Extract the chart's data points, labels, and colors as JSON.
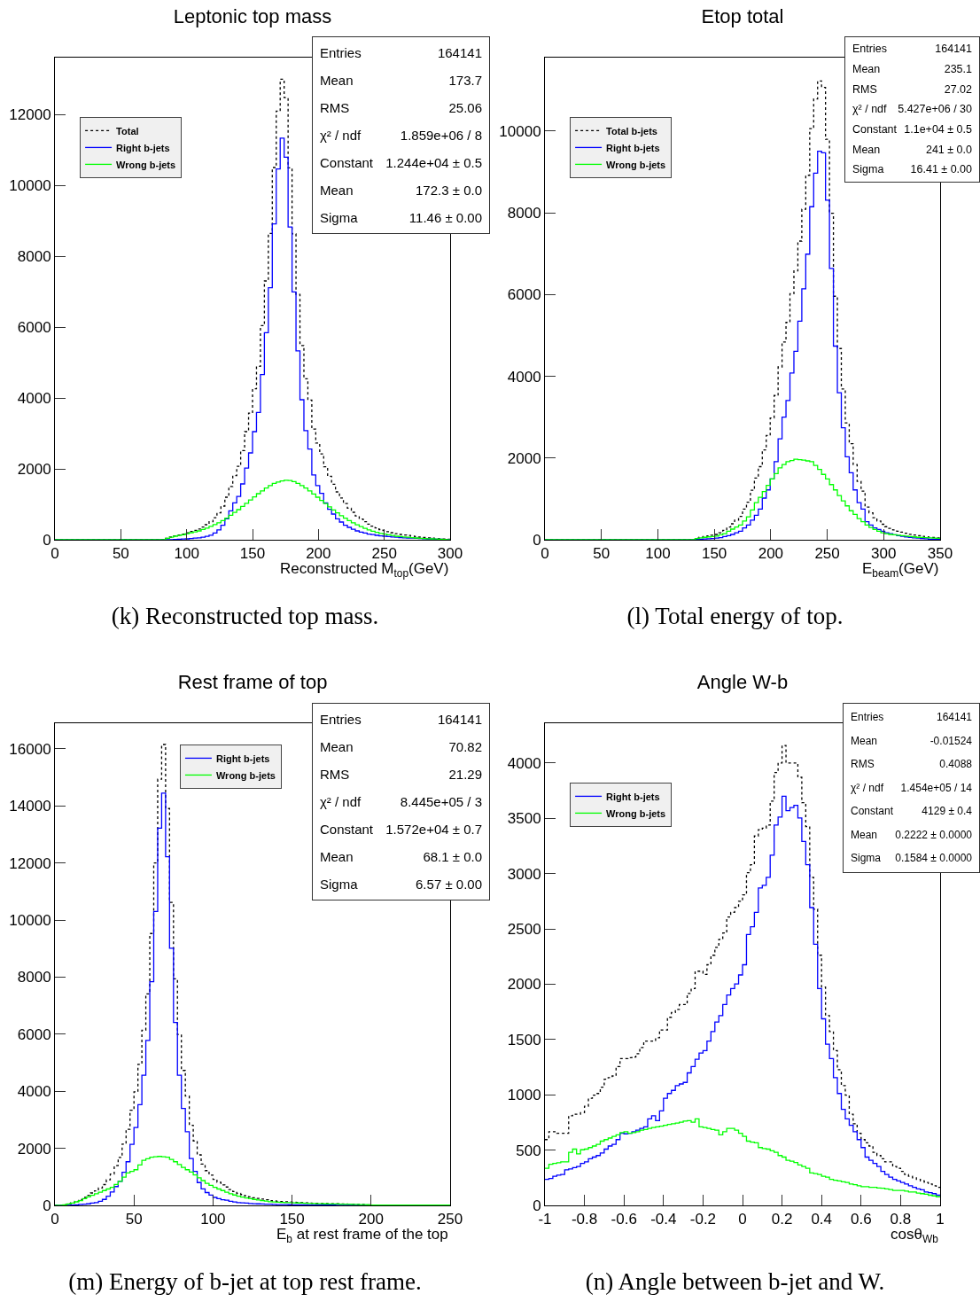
{
  "chart_data": [
    {
      "type": "histogram",
      "title": "Leptonic top mass",
      "xlabel": "Reconstructed M$_{top}$(GeV)",
      "legend": "top left",
      "xlim": [
        0,
        300
      ],
      "xticks": [
        0,
        50,
        100,
        150,
        200,
        250,
        300
      ],
      "ylim": [
        0,
        13600
      ],
      "yticks": [
        0,
        2000,
        4000,
        6000,
        8000,
        10000,
        12000
      ],
      "bins": [
        0,
        84,
        87,
        90,
        93,
        96,
        99,
        102,
        105,
        108,
        111,
        114,
        117,
        120,
        123,
        126,
        129,
        132,
        135,
        138,
        141,
        144,
        147,
        150,
        153,
        156,
        159,
        162,
        165,
        168,
        171,
        174,
        177,
        180,
        183,
        186,
        189,
        192,
        195,
        198,
        201,
        204,
        207,
        210,
        213,
        216,
        219,
        222,
        225,
        228,
        231,
        234,
        237,
        240,
        243,
        246,
        249,
        252,
        255,
        258,
        261,
        264,
        267,
        270,
        273,
        276,
        279,
        282,
        285,
        288,
        291,
        294,
        297,
        300
      ],
      "series": [
        {
          "name": "Total",
          "color": "#000000",
          "line_style": "dotted",
          "values": [
            0,
            40,
            75,
            110,
            135,
            160,
            195,
            235,
            265,
            305,
            360,
            425,
            510,
            620,
            760,
            950,
            1200,
            1505,
            1810,
            2070,
            2515,
            3050,
            3570,
            4260,
            4890,
            6040,
            7300,
            8640,
            10500,
            12090,
            12990,
            12470,
            10490,
            8630,
            6920,
            5480,
            4540,
            3940,
            3120,
            2730,
            2420,
            2060,
            1790,
            1565,
            1350,
            1180,
            1020,
            890,
            775,
            670,
            585,
            510,
            440,
            385,
            335,
            287,
            260,
            230,
            200,
            170,
            150,
            135,
            120,
            105,
            90,
            75,
            65,
            55,
            45,
            35,
            27,
            20,
            13
          ]
        },
        {
          "name": "Right b-jets",
          "color": "#0000ff",
          "line_style": "solid",
          "values": [
            0,
            0,
            5,
            10,
            15,
            20,
            25,
            35,
            45,
            55,
            70,
            95,
            130,
            190,
            280,
            410,
            590,
            815,
            1040,
            1220,
            1575,
            2020,
            2450,
            3050,
            3590,
            4660,
            5840,
            7110,
            8910,
            10460,
            11330,
            10790,
            8820,
            6990,
            5330,
            3950,
            3080,
            2560,
            1830,
            1530,
            1310,
            1040,
            860,
            725,
            590,
            500,
            410,
            350,
            295,
            250,
            215,
            190,
            160,
            145,
            125,
            107,
            100,
            90,
            80,
            70,
            60,
            55,
            50,
            45,
            40,
            35,
            30,
            25,
            20,
            15,
            12,
            10,
            8
          ]
        },
        {
          "name": "Wrong b-jets",
          "color": "#00ff00",
          "line_style": "solid",
          "values": [
            0,
            40,
            70,
            100,
            120,
            140,
            170,
            200,
            220,
            250,
            290,
            330,
            380,
            430,
            480,
            540,
            610,
            690,
            770,
            850,
            940,
            1030,
            1120,
            1210,
            1300,
            1380,
            1460,
            1530,
            1590,
            1630,
            1660,
            1680,
            1670,
            1640,
            1590,
            1530,
            1460,
            1380,
            1290,
            1200,
            1110,
            1020,
            930,
            840,
            760,
            680,
            610,
            540,
            480,
            420,
            370,
            320,
            280,
            240,
            210,
            180,
            160,
            140,
            120,
            100,
            90,
            80,
            70,
            60,
            50,
            40,
            35,
            30,
            25,
            20,
            15,
            10,
            5
          ]
        }
      ],
      "annotations": [
        "Entries",
        "164141",
        "Mean",
        "173.7",
        "RMS",
        "25.06",
        "χ² / ndf",
        "1.859e+06 / 8",
        "Constant",
        "1.244e+04 ± 0.5",
        "Mean",
        "172.3 ± 0.0",
        "Sigma",
        "11.46 ± 0.00",
        "(k) Reconstructed top mass."
      ]
    },
    {
      "type": "histogram",
      "title": "Etop total",
      "xlabel": "E$_{beam}$(GeV)",
      "legend": "top left",
      "xlim": [
        0,
        350
      ],
      "xticks": [
        0,
        50,
        100,
        150,
        200,
        250,
        300,
        350
      ],
      "ylim": [
        0,
        11800
      ],
      "yticks": [
        0,
        2000,
        4000,
        6000,
        8000,
        10000
      ],
      "bins": [
        0,
        133,
        136.5,
        140,
        143.5,
        147,
        150.5,
        154,
        157.5,
        161,
        164.5,
        168,
        171.5,
        175,
        178.5,
        182,
        185.5,
        189,
        192.5,
        196,
        199.5,
        203,
        206.5,
        210,
        213.5,
        217,
        220.5,
        224,
        227.5,
        231,
        234.5,
        238,
        241.5,
        245,
        248.5,
        252,
        255.5,
        259,
        262.5,
        266,
        269.5,
        273,
        276.5,
        280,
        283.5,
        287,
        290.5,
        294,
        297.5,
        301,
        304.5,
        308,
        311.5,
        315,
        318.5,
        322,
        325.5,
        329,
        332.5,
        336,
        339.5,
        343,
        346.5,
        350
      ],
      "series": [
        {
          "name": "Total b-jets",
          "color": "#000000",
          "line_style": "dotted",
          "values": [
            0,
            40,
            60,
            80,
            95,
            110,
            130,
            170,
            230,
            310,
            390,
            480,
            570,
            750,
            920,
            1210,
            1510,
            1790,
            2200,
            2550,
            2980,
            3530,
            4230,
            4840,
            5320,
            6020,
            6580,
            7310,
            8090,
            8920,
            10060,
            10790,
            11230,
            11070,
            9800,
            7990,
            5960,
            4680,
            3690,
            2860,
            2350,
            1840,
            1430,
            1190,
            800,
            660,
            540,
            460,
            380,
            320,
            280,
            240,
            210,
            185,
            160,
            135,
            115,
            100,
            85,
            75,
            60,
            55,
            45
          ]
        },
        {
          "name": "Right b-jets",
          "color": "#0000ff",
          "line_style": "solid",
          "values": [
            0,
            10,
            15,
            20,
            25,
            30,
            40,
            50,
            80,
            100,
            130,
            170,
            210,
            290,
            360,
            480,
            600,
            750,
            1020,
            1220,
            1490,
            1910,
            2470,
            3000,
            3410,
            4080,
            4610,
            5350,
            6140,
            6990,
            8150,
            8970,
            9510,
            9470,
            8310,
            6640,
            4740,
            3600,
            2740,
            2030,
            1640,
            1220,
            910,
            750,
            440,
            360,
            290,
            250,
            210,
            170,
            150,
            120,
            100,
            85,
            70,
            55,
            45,
            40,
            30,
            25,
            15,
            15,
            10
          ]
        },
        {
          "name": "Wrong b-jets",
          "color": "#00ff00",
          "line_style": "solid",
          "values": [
            0,
            30,
            45,
            60,
            70,
            80,
            90,
            120,
            150,
            210,
            260,
            310,
            360,
            460,
            560,
            730,
            910,
            1040,
            1180,
            1330,
            1490,
            1620,
            1760,
            1840,
            1910,
            1940,
            1970,
            1960,
            1950,
            1930,
            1910,
            1820,
            1720,
            1600,
            1490,
            1350,
            1220,
            1080,
            950,
            830,
            710,
            620,
            520,
            440,
            360,
            300,
            250,
            210,
            170,
            150,
            130,
            120,
            110,
            100,
            90,
            80,
            70,
            60,
            55,
            50,
            45,
            40,
            35
          ]
        }
      ],
      "annotations": [
        "Entries",
        "164141",
        "Mean",
        "235.1",
        "RMS",
        "27.02",
        "χ² / ndf",
        "5.427e+06 / 30",
        "Constant",
        "1.1e+04 ± 0.5",
        "Mean",
        "241 ± 0.0",
        "Sigma",
        "16.41 ± 0.00",
        "(l) Total energy of top."
      ]
    },
    {
      "type": "histogram",
      "title": "Rest frame of top",
      "xlabel": "E$_{b}$ at rest frame of the top",
      "legend": "top",
      "xlim": [
        0,
        250
      ],
      "xticks": [
        0,
        50,
        100,
        150,
        200,
        250
      ],
      "ylim": [
        0,
        16900
      ],
      "yticks": [
        0,
        2000,
        4000,
        6000,
        8000,
        10000,
        12000,
        14000,
        16000
      ],
      "bins": [
        0,
        5,
        7.5,
        10,
        12.5,
        15,
        17.5,
        20,
        22.5,
        25,
        27.5,
        30,
        32.5,
        35,
        37.5,
        40,
        42.5,
        45,
        47.5,
        50,
        52.5,
        55,
        57.5,
        60,
        62.5,
        65,
        67.5,
        70,
        72.5,
        75,
        77.5,
        80,
        82.5,
        85,
        87.5,
        90,
        92.5,
        95,
        97.5,
        100,
        102.5,
        105,
        107.5,
        110,
        112.5,
        115,
        117.5,
        120,
        122.5,
        125,
        127.5,
        130,
        132.5,
        135,
        137.5,
        140,
        142.5,
        145,
        147.5,
        150,
        152.5,
        155,
        157.5,
        160,
        162.5,
        165,
        167.5,
        170,
        172.5,
        175,
        177.5,
        180,
        182.5,
        185,
        187.5,
        190,
        192.5,
        195,
        197.5,
        200,
        250
      ],
      "series": [
        {
          "color": "#000000",
          "line_style": "dotted",
          "values": [
            0,
            23,
            55,
            90,
            145,
            205,
            280,
            355,
            435,
            510,
            610,
            730,
            895,
            1100,
            1395,
            1680,
            2150,
            2670,
            3335,
            3980,
            4945,
            6140,
            7415,
            9530,
            12005,
            14936,
            16155,
            13910,
            10620,
            7940,
            5990,
            4730,
            3830,
            2810,
            2260,
            1770,
            1450,
            1220,
            1060,
            910,
            810,
            720,
            645,
            555,
            485,
            420,
            380,
            340,
            302,
            270,
            245,
            220,
            195,
            170,
            155,
            140,
            133,
            126,
            119,
            112,
            105,
            98,
            91,
            81,
            76,
            72,
            68,
            64,
            60,
            57,
            54,
            50,
            47,
            44,
            42,
            38,
            33,
            27,
            22,
            10
          ]
        },
        {
          "name": "Right b-jets",
          "color": "#0000ff",
          "line_style": "solid",
          "values": [
            0,
            3,
            5,
            10,
            20,
            35,
            45,
            55,
            80,
            100,
            145,
            210,
            320,
            470,
            660,
            840,
            1160,
            1530,
            2140,
            2730,
            3530,
            4560,
            5780,
            7840,
            10300,
            13220,
            14450,
            12220,
            9010,
            6410,
            4560,
            3400,
            2580,
            1640,
            1190,
            800,
            580,
            450,
            360,
            280,
            235,
            200,
            180,
            145,
            120,
            100,
            90,
            80,
            67,
            60,
            55,
            50,
            45,
            40,
            35,
            30,
            28,
            26,
            24,
            22,
            20,
            18,
            16,
            14,
            12,
            11,
            10,
            9,
            8,
            7,
            6,
            5,
            5,
            4,
            4,
            3,
            3,
            2,
            2,
            0
          ]
        },
        {
          "name": "Wrong b-jets",
          "color": "#00ff00",
          "line_style": "solid",
          "values": [
            0,
            20,
            50,
            80,
            125,
            170,
            235,
            300,
            355,
            410,
            465,
            520,
            575,
            630,
            735,
            840,
            990,
            1140,
            1195,
            1250,
            1415,
            1580,
            1635,
            1690,
            1705,
            1716,
            1705,
            1690,
            1610,
            1530,
            1430,
            1330,
            1250,
            1170,
            1070,
            970,
            870,
            770,
            700,
            630,
            575,
            520,
            465,
            410,
            365,
            320,
            290,
            260,
            235,
            210,
            190,
            170,
            150,
            130,
            120,
            110,
            105,
            100,
            95,
            90,
            85,
            80,
            75,
            67,
            64,
            61,
            58,
            55,
            52,
            50,
            48,
            45,
            42,
            40,
            38,
            35,
            30,
            25,
            20,
            10
          ]
        }
      ],
      "annotations": [
        "Entries",
        "164141",
        "Mean",
        "70.82",
        "RMS",
        "21.29",
        "χ² / ndf",
        "8.445e+05 / 3",
        "Constant",
        "1.572e+04 ± 0.7",
        "Mean",
        "68.1 ± 0.0",
        "Sigma",
        "6.57 ± 0.00",
        "(m) Energy of b-jet at top rest frame."
      ]
    },
    {
      "type": "histogram",
      "title": "Angle W-b",
      "xlabel": "cosθ$_{Wb}$",
      "legend": "top left",
      "xlim": [
        -1,
        1
      ],
      "xticks": [
        -1,
        -0.8,
        -0.6,
        -0.4,
        -0.2,
        0,
        0.2,
        0.4,
        0.6,
        0.8,
        1
      ],
      "ylim": [
        0,
        4360
      ],
      "yticks": [
        0,
        500,
        1000,
        1500,
        2000,
        2500,
        3000,
        3500,
        4000
      ],
      "bins": [
        -1,
        -0.98,
        -0.96,
        -0.94,
        -0.92,
        -0.9,
        -0.88,
        -0.86,
        -0.84,
        -0.82,
        -0.8,
        -0.78,
        -0.76,
        -0.74,
        -0.72,
        -0.7,
        -0.68,
        -0.66,
        -0.64,
        -0.62,
        -0.6,
        -0.58,
        -0.56,
        -0.54,
        -0.52,
        -0.5,
        -0.48,
        -0.46,
        -0.44,
        -0.42,
        -0.4,
        -0.38,
        -0.36,
        -0.34,
        -0.32,
        -0.3,
        -0.28,
        -0.26,
        -0.24,
        -0.22,
        -0.2,
        -0.18,
        -0.16,
        -0.14,
        -0.12,
        -0.1,
        -0.08,
        -0.06,
        -0.04,
        -0.02,
        0,
        0.02,
        0.04,
        0.06,
        0.08,
        0.1,
        0.12,
        0.14,
        0.16,
        0.18,
        0.2,
        0.22,
        0.24,
        0.26,
        0.28,
        0.3,
        0.32,
        0.34,
        0.36,
        0.38,
        0.4,
        0.42,
        0.44,
        0.46,
        0.48,
        0.5,
        0.52,
        0.54,
        0.56,
        0.58,
        0.6,
        0.62,
        0.64,
        0.66,
        0.68,
        0.7,
        0.72,
        0.74,
        0.76,
        0.78,
        0.8,
        0.82,
        0.84,
        0.86,
        0.88,
        0.9,
        0.92,
        0.94,
        0.96,
        0.98,
        1
      ],
      "series": [
        {
          "color": "#000000",
          "line_style": "dotted",
          "values": [
            595,
            667,
            667,
            652,
            652,
            652,
            810,
            825,
            825,
            839,
            897,
            968,
            997,
            1012,
            1069,
            1141,
            1155,
            1170,
            1256,
            1328,
            1328,
            1336,
            1342,
            1371,
            1428,
            1486,
            1486,
            1486,
            1515,
            1586,
            1586,
            1701,
            1745,
            1773,
            1816,
            1816,
            1917,
            1960,
            2118,
            2118,
            2089,
            2176,
            2262,
            2334,
            2406,
            2463,
            2607,
            2650,
            2693,
            2750,
            2808,
            3009,
            3081,
            3340,
            3397,
            3411,
            3440,
            3656,
            3914,
            4001,
            4159,
            4001,
            4001,
            4001,
            3871,
            3641,
            3426,
            2966,
            2679,
            2262,
            1974,
            1716,
            1572,
            1400,
            1227,
            1083,
            997,
            825,
            739,
            652,
            595,
            566,
            537,
            480,
            451,
            422,
            394,
            394,
            351,
            336,
            308,
            279,
            264,
            250,
            236,
            221,
            207,
            193,
            178,
            164
          ]
        },
        {
          "name": "Right b-jets",
          "color": "#0000ff",
          "line_style": "solid",
          "values": [
            236,
            244,
            264,
            273,
            279,
            322,
            330,
            342,
            351,
            379,
            394,
            422,
            437,
            451,
            474,
            509,
            537,
            552,
            595,
            652,
            647,
            652,
            667,
            681,
            696,
            710,
            782,
            810,
            767,
            854,
            968,
            1012,
            1040,
            1083,
            1098,
            1112,
            1198,
            1256,
            1322,
            1377,
            1400,
            1486,
            1572,
            1658,
            1716,
            1816,
            1903,
            1960,
            2003,
            2084,
            2176,
            2449,
            2520,
            2650,
            2871,
            2894,
            2966,
            3167,
            3440,
            3512,
            3699,
            3570,
            3598,
            3618,
            3503,
            3291,
            3081,
            2693,
            2362,
            1960,
            1687,
            1457,
            1328,
            1155,
            1012,
            868,
            782,
            724,
            667,
            595,
            523,
            437,
            408,
            379,
            351,
            308,
            279,
            256,
            236,
            221,
            207,
            193,
            178,
            164,
            149,
            141,
            121,
            115,
            106,
            92
          ]
        },
        {
          "name": "Wrong b-jets",
          "color": "#00ff00",
          "line_style": "solid",
          "values": [
            336,
            371,
            379,
            385,
            394,
            394,
            480,
            509,
            466,
            503,
            509,
            523,
            537,
            552,
            581,
            595,
            609,
            624,
            638,
            658,
            667,
            652,
            658,
            667,
            681,
            687,
            696,
            704,
            710,
            716,
            724,
            733,
            739,
            744,
            753,
            762,
            767,
            753,
            782,
            710,
            704,
            696,
            687,
            681,
            638,
            667,
            696,
            696,
            681,
            652,
            624,
            581,
            572,
            566,
            523,
            514,
            509,
            494,
            480,
            451,
            437,
            408,
            399,
            388,
            365,
            351,
            336,
            293,
            287,
            279,
            264,
            256,
            236,
            227,
            221,
            213,
            207,
            193,
            187,
            178,
            170,
            170,
            164,
            164,
            158,
            155,
            149,
            144,
            135,
            135,
            135,
            129,
            121,
            121,
            112,
            106,
            101,
            92,
            86,
            78
          ]
        }
      ],
      "annotations": [
        "Entries",
        "164141",
        "Mean",
        "-0.01524",
        "RMS",
        "0.4088",
        "χ² / ndf",
        "1.454e+05 / 14",
        "Constant",
        "4129 ± 0.4",
        "Mean",
        "0.2222 ± 0.0000",
        "Sigma",
        "0.1584 ± 0.0000",
        "(n) Angle between b-jet and W."
      ]
    }
  ]
}
